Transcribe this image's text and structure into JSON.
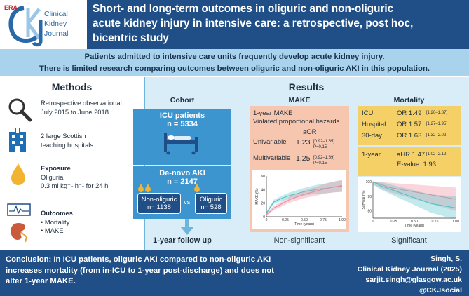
{
  "header": {
    "logo_era": "ERA",
    "logo_line1": "Clinical",
    "logo_line2": "Kidney",
    "logo_line3": "Journal",
    "title_line1": "Short- and long-term outcomes in oliguric and non-oliguric",
    "title_line2": "acute kidney injury in intensive care: a retrospective, post hoc,",
    "title_line3": "bicentric study"
  },
  "intro": {
    "line1": "Patients admitted to intensive care units frequently develop acute kidney injury.",
    "line2": "There is limited research comparing outcomes between oliguric and non-oliguric AKI in this population."
  },
  "methods": {
    "heading": "Methods",
    "design_line1": "Retrospective observational",
    "design_line2": "July 2015 to June 2018",
    "hospitals_line1": "2 large Scottish",
    "hospitals_line2": "teaching hospitals",
    "exposure_label": "Exposure",
    "exposure_line1": "Oliguria:",
    "exposure_line2": "0.3 ml kg⁻¹ h⁻¹ for 24 h",
    "outcomes_label": "Outcomes",
    "outcome1": "• Mortality",
    "outcome2": "• MAKE"
  },
  "results": {
    "heading": "Results",
    "cohort": {
      "heading": "Cohort",
      "icu_label": "ICU patients",
      "icu_n": "n = 5334",
      "aki_label": "De-novo AKI",
      "aki_n": "n = 2147",
      "nonolig_label": "Non-oliguric",
      "nonolig_n": "n= 1138",
      "vs": "vs.",
      "olig_label": "Oliguric",
      "olig_n": "n= 528",
      "followup": "1-year follow up"
    },
    "make": {
      "heading": "MAKE",
      "line1": "1-year MAKE",
      "line2": "Violated proportional hazards",
      "aor_header": "aOR",
      "rows": [
        {
          "label": "Univariable",
          "value": "1.23",
          "ci": "[0.92–1.65]",
          "p": "P=0.15"
        },
        {
          "label": "Multivariable",
          "value": "1.25",
          "ci": "[0.92–1.69]",
          "p": "P=0.15"
        }
      ],
      "verdict": "Non-significant"
    },
    "mortality": {
      "heading": "Mortality",
      "rows": [
        {
          "label": "ICU",
          "value": "OR 1.49",
          "ci": "[1.20–1.87]"
        },
        {
          "label": "Hospital",
          "value": "OR 1.57",
          "ci": "[1.27–1.95]"
        },
        {
          "label": "30-day",
          "value": "OR 1.63",
          "ci": "[1.32–2.02]"
        }
      ],
      "oneyear_label": "1-year",
      "oneyear_value": "aHR 1.47",
      "oneyear_ci": "[1.02–2.12]",
      "evalue": "E-value: 1.93",
      "verdict": "Significant"
    }
  },
  "chart_data": [
    {
      "type": "line",
      "xlabel": "Time (years)",
      "ylabel": "MAKE (%)",
      "xlim": [
        0,
        1
      ],
      "ylim": [
        0,
        60
      ],
      "xticks": [
        "0",
        "0.25",
        "0.50",
        "0.75",
        "1.00"
      ],
      "yticks": [
        "0",
        "20",
        "40",
        "60"
      ],
      "series": [
        {
          "color": "#4fc3c8",
          "x": [
            0,
            0.05,
            0.1,
            0.2,
            0.3,
            0.4,
            0.5,
            0.6,
            0.7,
            0.8,
            0.9,
            1.0
          ],
          "y": [
            5,
            14,
            22,
            27,
            31,
            34,
            37,
            39,
            41,
            42,
            44,
            45
          ]
        },
        {
          "color": "#f08a9a",
          "x": [
            0,
            0.05,
            0.1,
            0.2,
            0.3,
            0.4,
            0.5,
            0.6,
            0.7,
            0.8,
            0.9,
            1.0
          ],
          "y": [
            3,
            8,
            13,
            19,
            25,
            29,
            33,
            36,
            39,
            42,
            44,
            46
          ]
        }
      ]
    },
    {
      "type": "line",
      "xlabel": "Time (years)",
      "ylabel": "Survival (%)",
      "xlim": [
        0,
        1
      ],
      "ylim": [
        75,
        100
      ],
      "xticks": [
        "0",
        "0.25",
        "0.50",
        "0.75",
        "1.00"
      ],
      "yticks": [
        "80",
        "90",
        "100"
      ],
      "series": [
        {
          "color": "#f08a9a",
          "x": [
            0,
            0.1,
            0.2,
            0.3,
            0.4,
            0.5,
            0.6,
            0.7,
            0.8,
            0.9,
            1.0
          ],
          "y": [
            100,
            98,
            96,
            95,
            94,
            93,
            92,
            91,
            90,
            89,
            88
          ]
        },
        {
          "color": "#4fc3c8",
          "x": [
            0,
            0.1,
            0.2,
            0.3,
            0.4,
            0.5,
            0.6,
            0.7,
            0.8,
            0.9,
            1.0
          ],
          "y": [
            100,
            97,
            95,
            93,
            91,
            89,
            87,
            85,
            84,
            83,
            82
          ]
        }
      ]
    }
  ],
  "footer": {
    "conclusion_line1": "Conclusion: In ICU patients, oliguric AKI compared to non-oliguric AKI",
    "conclusion_line2": "increases mortality (from in-ICU to 1-year post-discharge) and does not",
    "conclusion_line3": "alter 1-year MAKE.",
    "author": "Singh, S.",
    "journal": "Clinical Kidney Journal (2025)",
    "email": "sarjit.singh@glasgow.ac.uk",
    "handle": "@CKJsocial"
  },
  "colors": {
    "navy": "#1f4f86",
    "light_blue": "#a9d2ec",
    "results_bg": "#d8edf8",
    "make_bg": "#f7c6ae",
    "mortality_bg": "#f5d067",
    "teal_series": "#4fc3c8",
    "pink_series": "#f08a9a"
  },
  "icons": [
    "magnifier-icon",
    "hospital-icon",
    "droplet-icon",
    "ecg-monitor-icon",
    "kidney-icon",
    "hospital-bed-icon",
    "down-arrow-icon"
  ]
}
